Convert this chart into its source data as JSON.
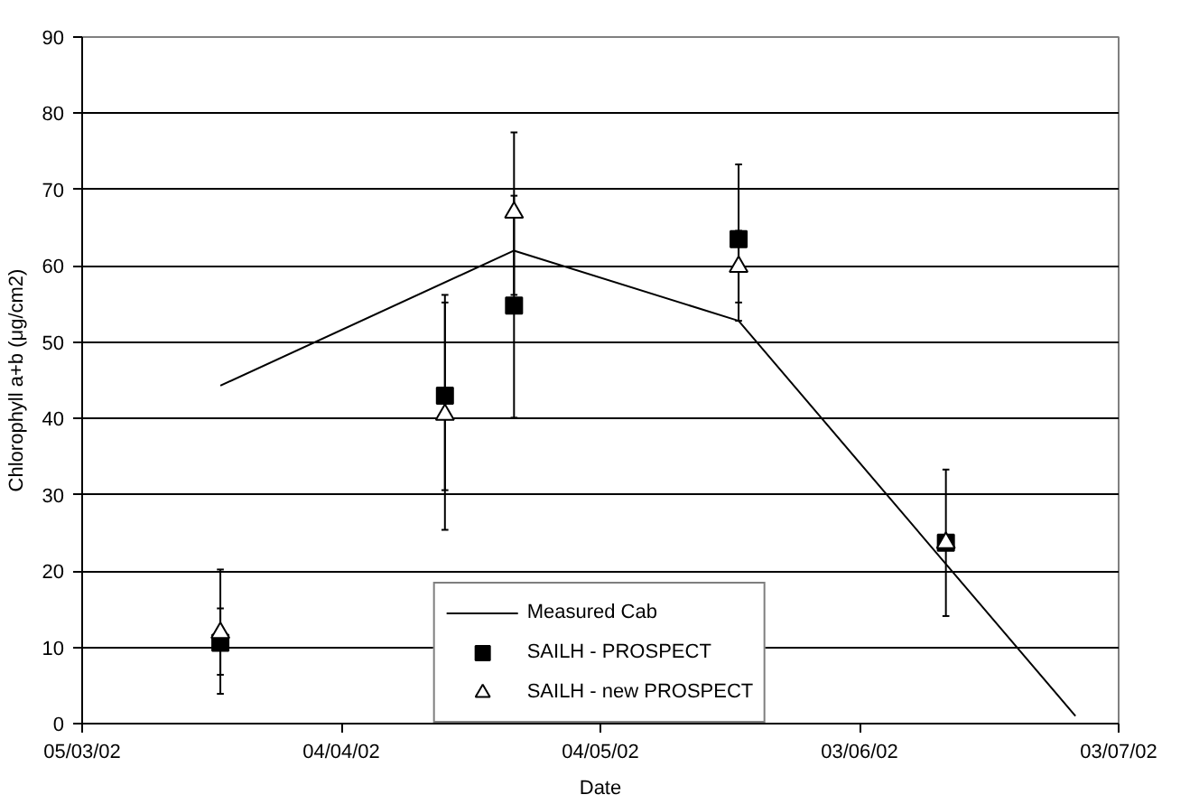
{
  "chart_data": {
    "type": "line",
    "xlabel": "Date",
    "ylabel": "Chlorophyll a+b (μg/cm2)",
    "xlim": [
      "2002-03-05",
      "2002-07-03"
    ],
    "xticks": [
      {
        "value": "2002-03-05",
        "label": "05/03/02"
      },
      {
        "value": "2002-04-04",
        "label": "04/04/02"
      },
      {
        "value": "2002-05-04",
        "label": "04/05/02"
      },
      {
        "value": "2002-06-03",
        "label": "03/06/02"
      },
      {
        "value": "2002-07-03",
        "label": "03/07/02"
      }
    ],
    "ylim": [
      0,
      90
    ],
    "yticks": [
      0,
      10,
      20,
      30,
      40,
      50,
      60,
      70,
      80,
      90
    ],
    "grid": "y",
    "legend": "bottom",
    "series": [
      {
        "name": "Measured Cab",
        "color": "#000000",
        "marker": "none",
        "line_style": "solid",
        "x": [
          "2002-03-21",
          "2002-04-24",
          "2002-05-20",
          "2002-06-28"
        ],
        "values": [
          44.3,
          62.0,
          52.8,
          1
        ]
      },
      {
        "name": "SAILH - PROSPECT",
        "type": "scatter",
        "color": "#000000",
        "marker": "square",
        "x": [
          "2002-03-21",
          "2002-04-16",
          "2002-04-24",
          "2002-05-20",
          "2002-06-13"
        ],
        "values": [
          10.6,
          43.0,
          54.8,
          63.5,
          23.7
        ],
        "errors": [
          [
            6.4,
            15.1
          ],
          [
            30.6,
            55.2
          ],
          [
            40.1,
            69.2
          ],
          [
            52.8,
            73.3
          ],
          [
            14.1,
            33.3
          ]
        ]
      },
      {
        "name": "SAILH - new PROSPECT",
        "type": "scatter",
        "color": "#000000",
        "marker": "triangle",
        "x": [
          "2002-03-21",
          "2002-04-16",
          "2002-04-24",
          "2002-05-20",
          "2002-06-13"
        ],
        "values": [
          11.9,
          40.5,
          67.0,
          59.9,
          23.7
        ],
        "errors": [
          [
            3.9,
            20.2
          ],
          [
            25.4,
            56.2
          ],
          [
            56.2,
            77.5
          ],
          [
            55.2,
            64.6
          ],
          null
        ]
      }
    ]
  }
}
